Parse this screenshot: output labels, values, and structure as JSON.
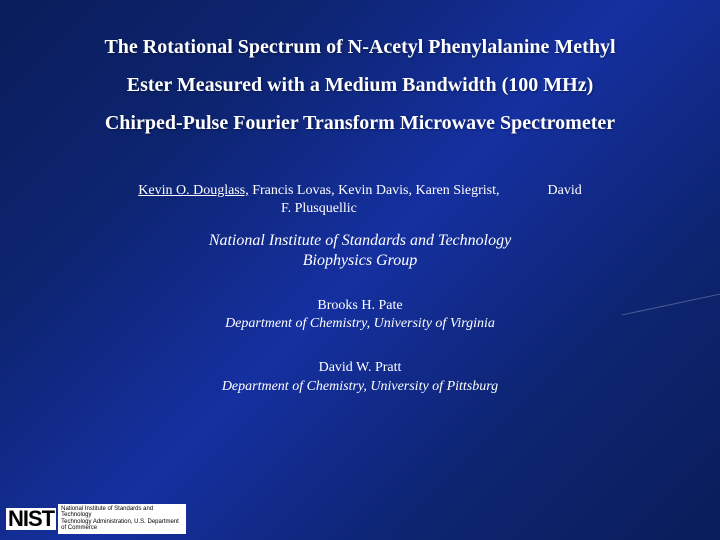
{
  "title": {
    "line1": "The Rotational Spectrum of N-Acetyl Phenylalanine Methyl",
    "line2": "Ester Measured with a Medium Bandwidth (100 MHz)",
    "line3": "Chirped-Pulse Fourier Transform Microwave Spectrometer"
  },
  "authors": {
    "underlined": "Kevin O. Douglass,",
    "rest": " Francis Lovas, Kevin Davis, Karen Siegrist,",
    "line2": "F. Plusquellic",
    "side": "David"
  },
  "institute": {
    "line1": "National Institute of Standards and Technology",
    "line2": "Biophysics Group"
  },
  "block1": {
    "name": "Brooks H. Pate",
    "aff": "Department of Chemistry, University of Virginia"
  },
  "block2": {
    "name": "David W. Pratt",
    "aff": "Department of Chemistry, University of Pittsburg"
  },
  "logo": {
    "mark": "NIST",
    "text1": "National Institute of Standards and Technology",
    "text2": "Technology Administration, U.S. Department of Commerce"
  }
}
